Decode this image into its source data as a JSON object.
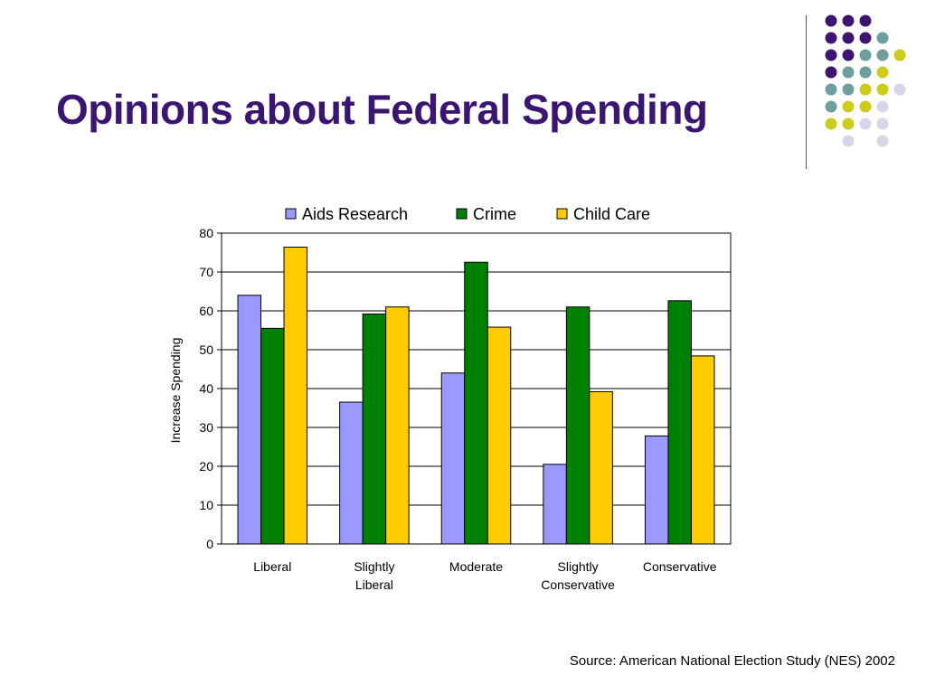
{
  "slide": {
    "title": "Opinions about Federal Spending",
    "source": "Source: American National Election Study (NES) 2002"
  },
  "decoration": {
    "dot_colors": {
      "purple": "#3d1470",
      "teal": "#6f9e9e",
      "yellow": "#cccc1a",
      "lavender": "#d6d6e8"
    },
    "dot_grid": [
      [
        "purple",
        "purple",
        "purple",
        null,
        null
      ],
      [
        "purple",
        "purple",
        "purple",
        "teal",
        null
      ],
      [
        "purple",
        "purple",
        "teal",
        "teal",
        "yellow"
      ],
      [
        "purple",
        "teal",
        "teal",
        "yellow",
        null
      ],
      [
        "teal",
        "teal",
        "yellow",
        "yellow",
        "lavender"
      ],
      [
        "teal",
        "yellow",
        "yellow",
        "lavender",
        null
      ],
      [
        "yellow",
        "yellow",
        "lavender",
        "lavender",
        null
      ],
      [
        null,
        "lavender",
        null,
        "lavender",
        null
      ]
    ]
  },
  "chart_data": {
    "type": "bar",
    "title": "",
    "xlabel": "",
    "ylabel": "Increase Spending",
    "ylim": [
      0,
      80
    ],
    "yticks": [
      0,
      10,
      20,
      30,
      40,
      50,
      60,
      70,
      80
    ],
    "grid": true,
    "legend_position": "top",
    "categories": [
      [
        "Liberal"
      ],
      [
        "Slightly",
        "Liberal"
      ],
      [
        "Moderate"
      ],
      [
        "Slightly",
        "Conservative"
      ],
      [
        "Conservative"
      ]
    ],
    "series": [
      {
        "name": "Aids Research",
        "color": "#9999ff",
        "values": [
          64,
          36.5,
          44,
          20.5,
          27.8
        ]
      },
      {
        "name": "Crime",
        "color": "#008000",
        "values": [
          55.5,
          59.2,
          72.5,
          61,
          62.6
        ]
      },
      {
        "name": "Child Care",
        "color": "#ffcc00",
        "values": [
          76.4,
          61,
          55.8,
          39.2,
          48.4
        ]
      }
    ]
  }
}
